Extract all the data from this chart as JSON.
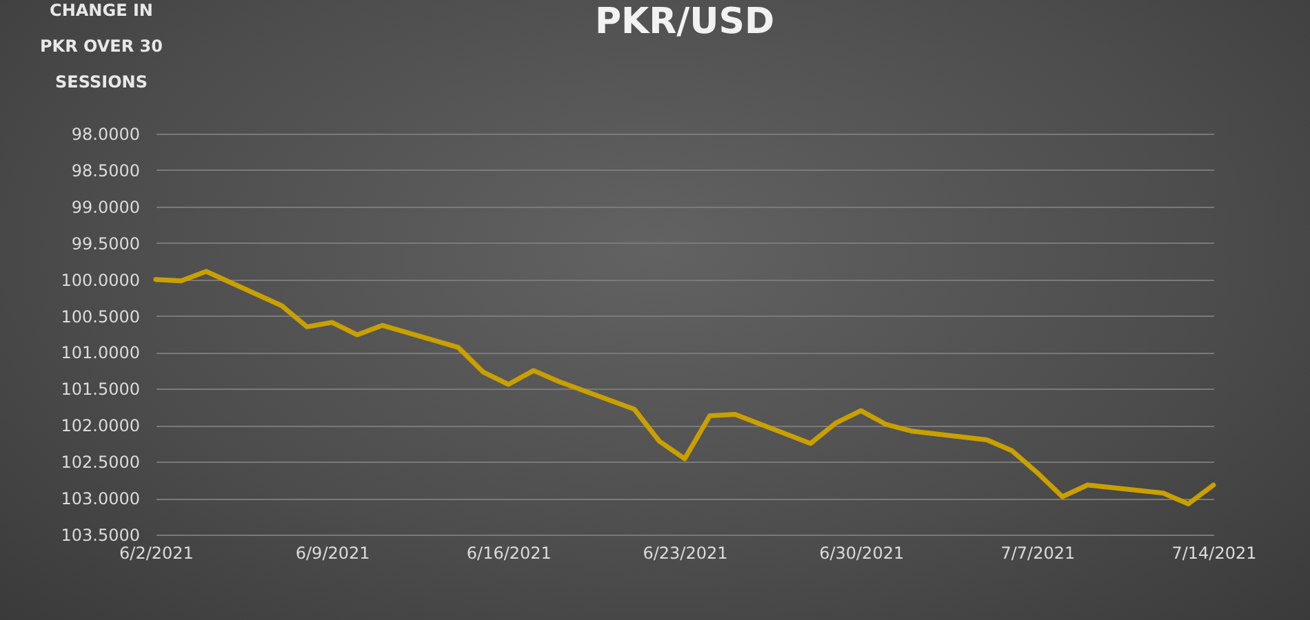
{
  "chart_data": {
    "type": "line",
    "title": "PKR/USD",
    "ylabel": "CHANGE IN PKR OVER 30 SESSIONS",
    "x": [
      "2021-06-02",
      "2021-06-03",
      "2021-06-04",
      "2021-06-07",
      "2021-06-08",
      "2021-06-09",
      "2021-06-10",
      "2021-06-11",
      "2021-06-14",
      "2021-06-15",
      "2021-06-16",
      "2021-06-17",
      "2021-06-18",
      "2021-06-21",
      "2021-06-22",
      "2021-06-23",
      "2021-06-24",
      "2021-06-25",
      "2021-06-28",
      "2021-06-29",
      "2021-06-30",
      "2021-07-01",
      "2021-07-02",
      "2021-07-05",
      "2021-07-06",
      "2021-07-07",
      "2021-07-08",
      "2021-07-09",
      "2021-07-12",
      "2021-07-13",
      "2021-07-14"
    ],
    "series": [
      {
        "color": "#c9a000",
        "values": [
          100.0,
          100.02,
          99.89,
          100.36,
          100.65,
          100.59,
          100.76,
          100.63,
          100.93,
          101.27,
          101.44,
          101.25,
          101.4,
          101.78,
          102.22,
          102.46,
          101.87,
          101.85,
          102.25,
          101.97,
          101.8,
          101.99,
          102.08,
          102.2,
          102.35,
          102.65,
          102.98,
          102.82,
          102.93,
          103.08,
          102.82
        ]
      }
    ],
    "xlim": [
      "2021-06-02",
      "2021-07-14"
    ],
    "xticks": [
      {
        "value": "2021-06-02",
        "label": "6/2/2021"
      },
      {
        "value": "2021-06-09",
        "label": "6/9/2021"
      },
      {
        "value": "2021-06-16",
        "label": "6/16/2021"
      },
      {
        "value": "2021-06-23",
        "label": "6/23/2021"
      },
      {
        "value": "2021-06-30",
        "label": "6/30/2021"
      },
      {
        "value": "2021-07-07",
        "label": "7/7/2021"
      },
      {
        "value": "2021-07-14",
        "label": "7/14/2021"
      }
    ],
    "ylim": [
      103.5,
      98
    ],
    "yticks": [
      {
        "value": 98,
        "label": "98.0000"
      },
      {
        "value": 98.5,
        "label": "98.5000"
      },
      {
        "value": 99,
        "label": "99.0000"
      },
      {
        "value": 99.5,
        "label": "99.5000"
      },
      {
        "value": 100,
        "label": "100.0000"
      },
      {
        "value": 100.5,
        "label": "100.5000"
      },
      {
        "value": 101,
        "label": "101.0000"
      },
      {
        "value": 101.5,
        "label": "101.5000"
      },
      {
        "value": 102,
        "label": "102.0000"
      },
      {
        "value": 102.5,
        "label": "102.5000"
      },
      {
        "value": 103,
        "label": "103.0000"
      },
      {
        "value": 103.5,
        "label": "103.5000"
      }
    ],
    "grid": "y"
  }
}
